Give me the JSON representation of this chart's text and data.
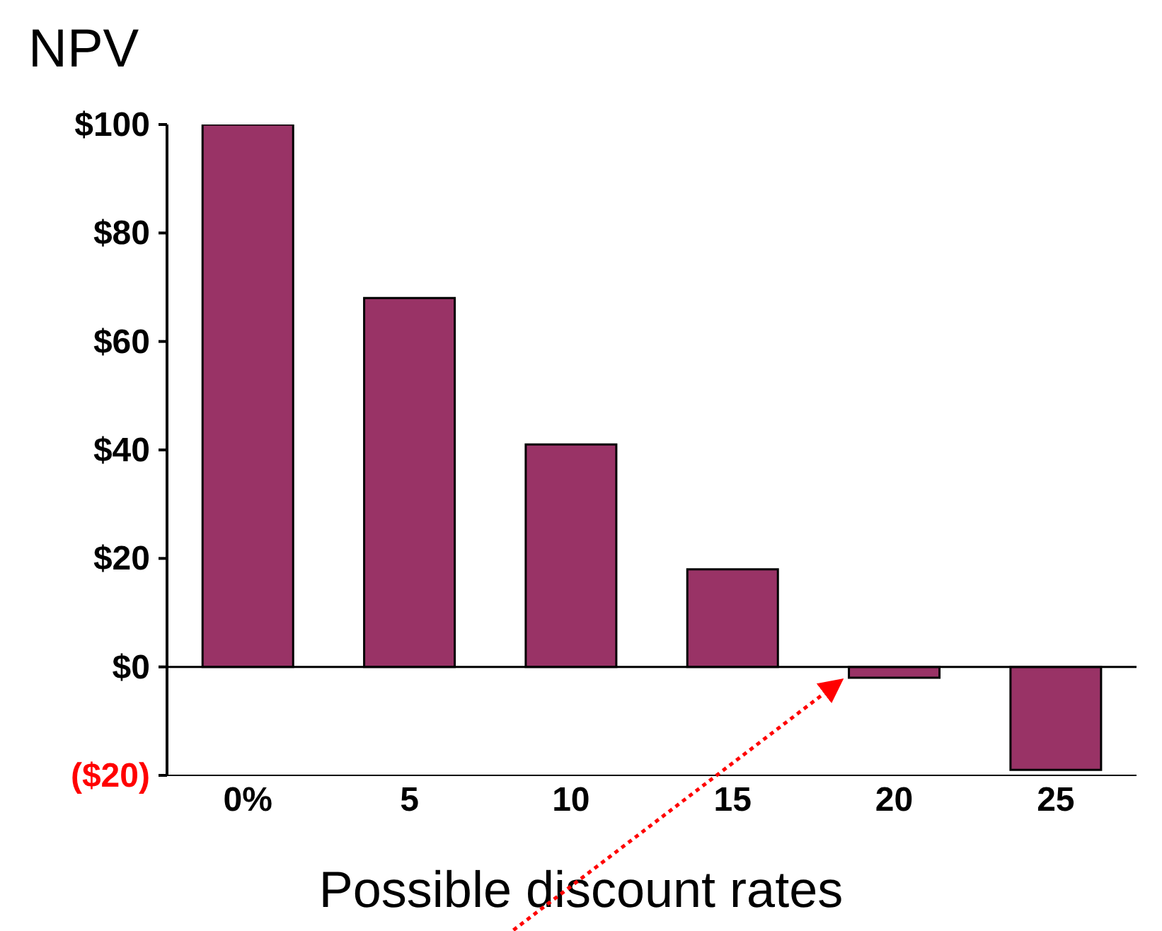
{
  "chart_data": {
    "type": "bar",
    "title": "NPV",
    "xlabel": "Possible discount rates",
    "categories": [
      "0%",
      "5",
      "10",
      "15",
      "20",
      "25"
    ],
    "values": [
      100,
      68,
      41,
      18,
      -2,
      -19
    ],
    "color": "#993366",
    "ylim": [
      -20,
      100
    ],
    "yticks": [
      {
        "value": -20,
        "label": "($20)"
      },
      {
        "value": 0,
        "label": "$0"
      },
      {
        "value": 20,
        "label": "$20"
      },
      {
        "value": 40,
        "label": "$40"
      },
      {
        "value": 60,
        "label": "$60"
      },
      {
        "value": 80,
        "label": "$80"
      },
      {
        "value": 100,
        "label": "$100"
      }
    ],
    "ref_lines": [
      {
        "axis": "y",
        "value": 0
      }
    ],
    "legend": false
  }
}
